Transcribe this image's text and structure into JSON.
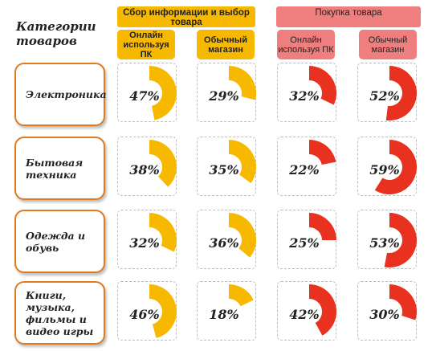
{
  "header": {
    "corner_title": "Категории товаров",
    "groups": [
      {
        "label": "Сбор информации и выбор товара"
      },
      {
        "label": "Покупка товара"
      }
    ],
    "columns": [
      {
        "label": "Онлайн используя ПК"
      },
      {
        "label": "Обычный магазин"
      },
      {
        "label": "Онлайн используя ПК"
      },
      {
        "label": "Обычный магазин"
      }
    ]
  },
  "rows": [
    {
      "label": "Электроника"
    },
    {
      "label": "Бытовая техника"
    },
    {
      "label": "Одежда и обувь"
    },
    {
      "label": "Книги, музыка, фильмы и видео игры"
    }
  ],
  "colors": {
    "collect": "#f7b800",
    "buy": "#e8311f",
    "collect_header": "#f7b800",
    "buy_header": "#ef7e7e",
    "label_border": "#e07a1d"
  },
  "chart_data": {
    "type": "table",
    "title": "",
    "categories": [
      "Электроника",
      "Бытовая техника",
      "Одежда и обувь",
      "Книги, музыка, фильмы и видео игры"
    ],
    "series": [
      {
        "name": "Сбор информации и выбор товара — Онлайн используя ПК",
        "values": [
          47,
          38,
          32,
          46
        ],
        "labels": [
          "47%",
          "38%",
          "32%",
          "46%"
        ]
      },
      {
        "name": "Сбор информации и выбор товара — Обычный магазин",
        "values": [
          29,
          35,
          36,
          18
        ],
        "labels": [
          "29%",
          "35%",
          "36%",
          "18%"
        ]
      },
      {
        "name": "Покупка товара — Онлайн используя ПК",
        "values": [
          32,
          22,
          25,
          42
        ],
        "labels": [
          "32%",
          "22%",
          "25%",
          "42%"
        ]
      },
      {
        "name": "Покупка товара — Обычный магазин",
        "values": [
          52,
          59,
          53,
          30
        ],
        "labels": [
          "52%",
          "59%",
          "53%",
          "30%"
        ]
      }
    ]
  }
}
